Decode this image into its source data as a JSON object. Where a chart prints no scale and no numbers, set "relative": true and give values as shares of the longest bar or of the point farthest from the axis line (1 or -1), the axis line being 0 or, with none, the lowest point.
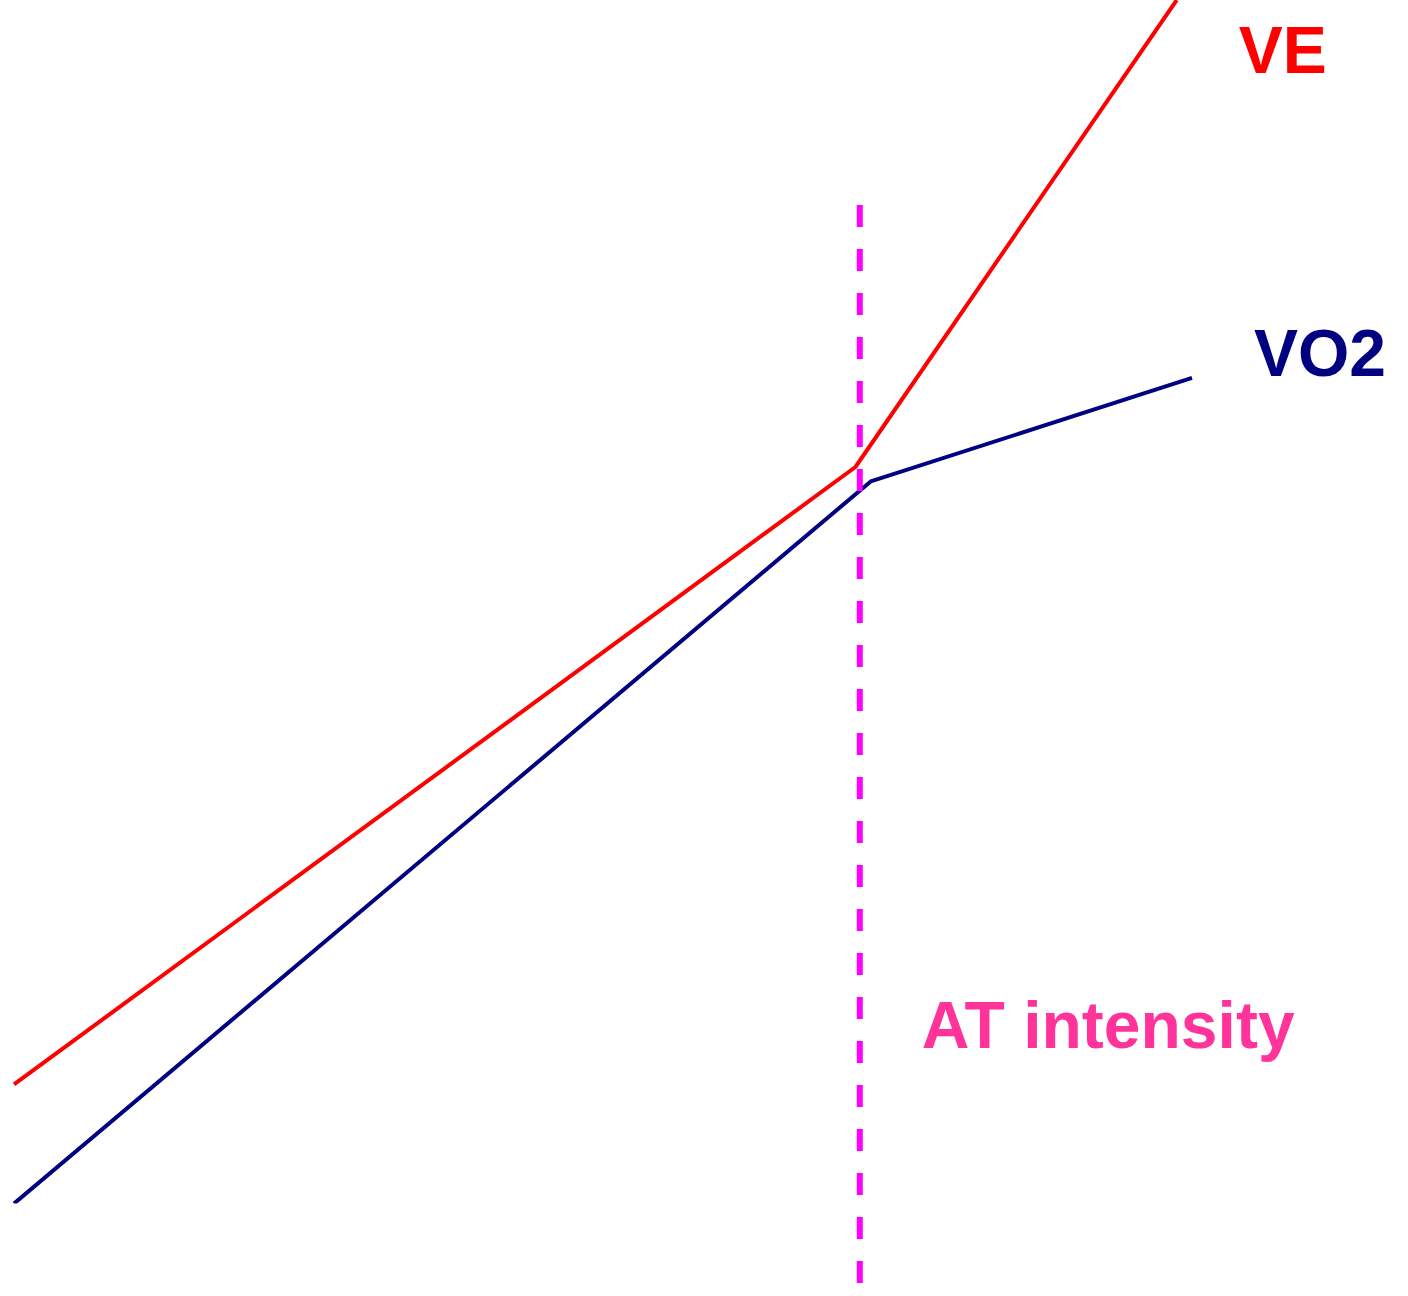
{
  "chart_data": {
    "type": "line",
    "relative": true,
    "legend": false,
    "marker": "none",
    "line_style": "solid",
    "categories": [
      null,
      null,
      null,
      null,
      null,
      null,
      null,
      null,
      null,
      null,
      null,
      null,
      null,
      null,
      null,
      null,
      null,
      null,
      null,
      null,
      null,
      null,
      null,
      null,
      null,
      null,
      null,
      null,
      null,
      null,
      null,
      null,
      null,
      null,
      null,
      null,
      null,
      null,
      null,
      null,
      null,
      null,
      null,
      null,
      null,
      null,
      null,
      null,
      null,
      null,
      null,
      null,
      null,
      null,
      null,
      null,
      null,
      null,
      null,
      null,
      null,
      null,
      null,
      null,
      null,
      null,
      null,
      null,
      null,
      null,
      null,
      null,
      null,
      null,
      null,
      null,
      null,
      null
    ],
    "series": [
      {
        "name": "VE",
        "color": "#ff0000",
        "values": [
          0.099,
          null,
          null,
          null,
          null,
          null,
          null,
          null,
          null,
          null,
          null,
          null,
          null,
          null,
          null,
          null,
          null,
          null,
          null,
          null,
          null,
          null,
          null,
          null,
          null,
          null,
          null,
          null,
          null,
          null,
          null,
          null,
          null,
          null,
          null,
          null,
          null,
          null,
          null,
          null,
          null,
          null,
          null,
          null,
          null,
          null,
          null,
          null,
          null,
          null,
          null,
          null,
          null,
          null,
          null,
          0.612,
          null,
          null,
          null,
          null,
          null,
          null,
          null,
          null,
          null,
          null,
          null,
          null,
          null,
          null,
          null,
          null,
          null,
          null,
          null,
          null,
          1,
          null
        ]
      },
      {
        "name": "VO2",
        "color": "#000080",
        "values": [
          0,
          null,
          null,
          null,
          null,
          null,
          null,
          null,
          null,
          null,
          null,
          null,
          null,
          null,
          null,
          null,
          null,
          null,
          null,
          null,
          null,
          null,
          null,
          null,
          null,
          null,
          null,
          null,
          null,
          null,
          null,
          null,
          null,
          null,
          null,
          null,
          null,
          null,
          null,
          null,
          null,
          null,
          null,
          null,
          null,
          null,
          null,
          null,
          null,
          null,
          null,
          null,
          null,
          null,
          null,
          null,
          0.6,
          null,
          null,
          null,
          null,
          null,
          null,
          null,
          null,
          null,
          null,
          null,
          null,
          null,
          null,
          null,
          null,
          null,
          null,
          null,
          null,
          0.686
        ]
      }
    ],
    "annotations": [
      "AT intensity"
    ]
  }
}
